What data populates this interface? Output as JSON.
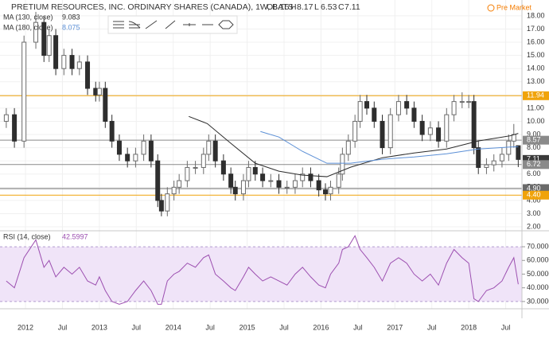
{
  "chart_data": {
    "type": "candlestick",
    "title": "PRETIUM RESOURCES, INC. ORDINARY SHARES (CANADA), 1W, BATS",
    "ohlc_header": [
      {
        "label": "O",
        "value": 8.15
      },
      {
        "label": "H",
        "value": 8.17
      },
      {
        "label": "L",
        "value": 6.53
      },
      {
        "label": "C",
        "value": 7.11
      }
    ],
    "status": "Pre Market",
    "x": [
      2011.74,
      2011.85,
      2011.98,
      2012.14,
      2012.25,
      2012.32,
      2012.41,
      2012.52,
      2012.63,
      2012.73,
      2012.84,
      2012.95,
      2013.0,
      2013.08,
      2013.17,
      2013.27,
      2013.38,
      2013.49,
      2013.6,
      2013.7,
      2013.79,
      2013.84,
      2013.92,
      2014.01,
      2014.08,
      2014.19,
      2014.3,
      2014.41,
      2014.48,
      2014.57,
      2014.68,
      2014.78,
      2014.84,
      2014.95,
      2015.02,
      2015.11,
      2015.21,
      2015.32,
      2015.43,
      2015.54,
      2015.65,
      2015.75,
      2015.86,
      2015.97,
      2016.06,
      2016.13,
      2016.24,
      2016.29,
      2016.37,
      2016.46,
      2016.53,
      2016.62,
      2016.72,
      2016.83,
      2016.94,
      2017.05,
      2017.16,
      2017.26,
      2017.37,
      2017.48,
      2017.59,
      2017.7,
      2017.8,
      2017.91,
      2018.0,
      2018.07,
      2018.13,
      2018.24,
      2018.34,
      2018.45,
      2018.54,
      2018.61,
      2018.67
    ],
    "open": [
      10,
      10.5,
      8.5,
      16,
      17.5,
      15,
      16.5,
      14,
      15,
      14,
      14.5,
      12.5,
      12,
      12.5,
      10,
      8.5,
      7.5,
      7,
      7.5,
      8.5,
      7,
      4,
      3.2,
      4.5,
      5,
      5.5,
      6.5,
      6.5,
      7.5,
      8.5,
      7,
      6,
      5,
      4.5,
      5.5,
      6.5,
      6,
      5.5,
      5.5,
      5,
      5,
      5.5,
      6,
      5.5,
      4.8,
      4.5,
      5,
      6,
      7.5,
      8.5,
      10,
      11.5,
      11,
      10,
      8,
      10.5,
      11.5,
      11,
      10,
      9,
      9.5,
      8.5,
      10.5,
      11.5,
      11.5,
      11.5,
      8,
      6.5,
      6.7,
      7,
      7.5,
      8.5,
      8.15
    ],
    "high": [
      11,
      11,
      16.5,
      18.3,
      18,
      17,
      17,
      15.5,
      15.5,
      15,
      15,
      13,
      13,
      13,
      10.5,
      9,
      8,
      8,
      9,
      9,
      7.5,
      4.5,
      5,
      5.5,
      6,
      7,
      7,
      8,
      9,
      9,
      7.5,
      6.5,
      5.5,
      6,
      7,
      7,
      6.5,
      6,
      6,
      5.5,
      6,
      6.5,
      6.5,
      6,
      5.3,
      5.5,
      6.5,
      8,
      9,
      10.5,
      12,
      12,
      11.5,
      10.5,
      11,
      12,
      12,
      11.5,
      10.5,
      10,
      10,
      11,
      12,
      12.2,
      12,
      12,
      8.5,
      7.2,
      7.5,
      8,
      9,
      9.8,
      8.17
    ],
    "low": [
      9.5,
      8,
      8,
      15.5,
      14.5,
      14.5,
      13.5,
      13.5,
      13.5,
      13.5,
      12,
      11.5,
      11.5,
      9.5,
      8,
      7,
      6.5,
      6.5,
      7,
      6.5,
      3.5,
      2.8,
      2.8,
      4,
      4.5,
      5,
      6,
      6,
      7,
      6.5,
      5.5,
      4.5,
      4,
      4,
      5,
      5.5,
      5,
      5,
      4.5,
      4.5,
      4.5,
      5,
      5,
      4.3,
      4,
      4,
      4.5,
      5.5,
      7,
      8,
      9.5,
      10.5,
      9.5,
      7.5,
      7.5,
      10,
      10.5,
      9.5,
      8.5,
      8.5,
      8,
      8,
      10,
      11,
      11,
      7.5,
      6,
      6,
      6.2,
      6.5,
      7,
      8,
      6.53
    ],
    "close": [
      10.5,
      8.5,
      16,
      17.5,
      15,
      16.5,
      14,
      15,
      14,
      14.5,
      12.5,
      12,
      12.5,
      10,
      8.5,
      7.5,
      7,
      7.5,
      8.5,
      7,
      4,
      3.2,
      4.5,
      5,
      5.5,
      6.5,
      6.5,
      7.5,
      8.5,
      7,
      6,
      5,
      4.5,
      5.5,
      6.5,
      6,
      5.5,
      5.5,
      5,
      5,
      5.5,
      6,
      5.5,
      4.8,
      4.5,
      5,
      6,
      7.5,
      8.5,
      10,
      11.5,
      11,
      10,
      8,
      10.5,
      11.5,
      11,
      10,
      9,
      9.5,
      8.5,
      10.5,
      11.5,
      11.5,
      11.5,
      8,
      6.5,
      6.7,
      7,
      7.5,
      8.5,
      9,
      7.11
    ],
    "up_color": "#6b6b6b",
    "down_color": "#2e2e2e",
    "grid": true,
    "xlim": [
      2011.655,
      2018.72
    ],
    "xticks": [
      {
        "value": 2012,
        "label": "2012"
      },
      {
        "value": 2012.5,
        "label": "Jul"
      },
      {
        "value": 2013,
        "label": "2013"
      },
      {
        "value": 2013.5,
        "label": "Jul"
      },
      {
        "value": 2014,
        "label": "2014"
      },
      {
        "value": 2014.5,
        "label": "Jul"
      },
      {
        "value": 2015,
        "label": "2015"
      },
      {
        "value": 2015.5,
        "label": "Jul"
      },
      {
        "value": 2016,
        "label": "2016"
      },
      {
        "value": 2016.5,
        "label": "Jul"
      },
      {
        "value": 2017,
        "label": "2017"
      },
      {
        "value": 2017.5,
        "label": "Jul"
      },
      {
        "value": 2018,
        "label": "2018"
      },
      {
        "value": 2018.5,
        "label": "Jul"
      }
    ],
    "ylim": [
      1.7,
      19.2
    ],
    "yticks": [
      {
        "value": 2,
        "label": "2.00"
      },
      {
        "value": 3,
        "label": "3.00"
      },
      {
        "value": 4,
        "label": "4.00"
      },
      {
        "value": 5,
        "label": "5.00"
      },
      {
        "value": 6,
        "label": "6.00"
      },
      {
        "value": 7,
        "label": "7.00"
      },
      {
        "value": 8,
        "label": "8.00"
      },
      {
        "value": 9,
        "label": "9.00"
      },
      {
        "value": 10,
        "label": "10.00"
      },
      {
        "value": 11,
        "label": "11.00"
      },
      {
        "value": 12,
        "label": "12.00"
      },
      {
        "value": 13,
        "label": "13.00"
      },
      {
        "value": 14,
        "label": "14.00"
      },
      {
        "value": 15,
        "label": "15.00"
      },
      {
        "value": 16,
        "label": "16.00"
      },
      {
        "value": 17,
        "label": "17.00"
      },
      {
        "value": 18,
        "label": "18.00"
      }
    ],
    "indicators": [
      {
        "name": "MA (130, close)",
        "color": "#2b2b2b",
        "x": [
          2014.21,
          2014.46,
          2014.78,
          2015.11,
          2015.43,
          2015.75,
          2016.08,
          2016.4,
          2016.83,
          2017.26,
          2017.7,
          2018.13,
          2018.56,
          2018.67
        ],
        "values": [
          10.37,
          9.83,
          8.33,
          6.82,
          6.22,
          5.92,
          5.8,
          6.52,
          7.24,
          7.6,
          7.9,
          8.51,
          8.9,
          9.083
        ]
      },
      {
        "name": "MA (180, close)",
        "color": "#5b8fd6",
        "x": [
          2015.18,
          2015.43,
          2015.75,
          2016.08,
          2016.4,
          2016.83,
          2017.26,
          2017.7,
          2018.13,
          2018.56,
          2018.67
        ],
        "values": [
          9.23,
          8.81,
          7.72,
          6.82,
          6.82,
          7.12,
          7.3,
          7.54,
          7.9,
          8.05,
          8.075
        ]
      }
    ],
    "price_lines": [
      {
        "price": 11.94,
        "color": "#f0a30a",
        "line": true
      },
      {
        "price": 8.57,
        "color": "#8a8a8a",
        "line": true
      },
      {
        "price": 7.11,
        "color": "#3a3a3a",
        "line": false
      },
      {
        "price": 6.72,
        "color": "#8a8a8a",
        "line": true
      },
      {
        "price": {
          "value": 4.9,
          "label": "4.90"
        },
        "color": "#6a6a6a",
        "line": true
      },
      {
        "price": {
          "value": 4.4,
          "label": "4.40"
        },
        "color": "#f0a30a",
        "line": true
      }
    ],
    "rsi": {
      "name": "RSI (14, close)",
      "color": "#9c4fb0",
      "values": [
        45,
        40,
        62,
        75,
        55,
        60,
        48,
        55,
        50,
        55,
        45,
        42,
        48,
        38,
        30,
        28,
        30,
        38,
        45,
        38,
        28,
        28,
        45,
        50,
        52,
        58,
        55,
        62,
        64,
        50,
        45,
        40,
        38,
        48,
        55,
        50,
        45,
        48,
        45,
        42,
        50,
        55,
        48,
        42,
        40,
        50,
        58,
        68,
        70,
        78,
        68,
        62,
        55,
        45,
        58,
        62,
        58,
        50,
        45,
        50,
        42,
        58,
        68,
        62,
        58,
        32,
        30,
        38,
        40,
        45,
        55,
        62,
        42.5997
      ],
      "ylim": [
        24.7,
        80.5
      ],
      "yticks": [
        {
          "value": 30,
          "label": "30.0000"
        },
        {
          "value": 40,
          "label": "40.0000"
        },
        {
          "value": 50,
          "label": "50.0000"
        },
        {
          "value": 60,
          "label": "60.0000"
        },
        {
          "value": 70,
          "label": "70.0000"
        }
      ],
      "band": [
        30,
        70
      ],
      "band_color": "#f0e4f8"
    }
  }
}
